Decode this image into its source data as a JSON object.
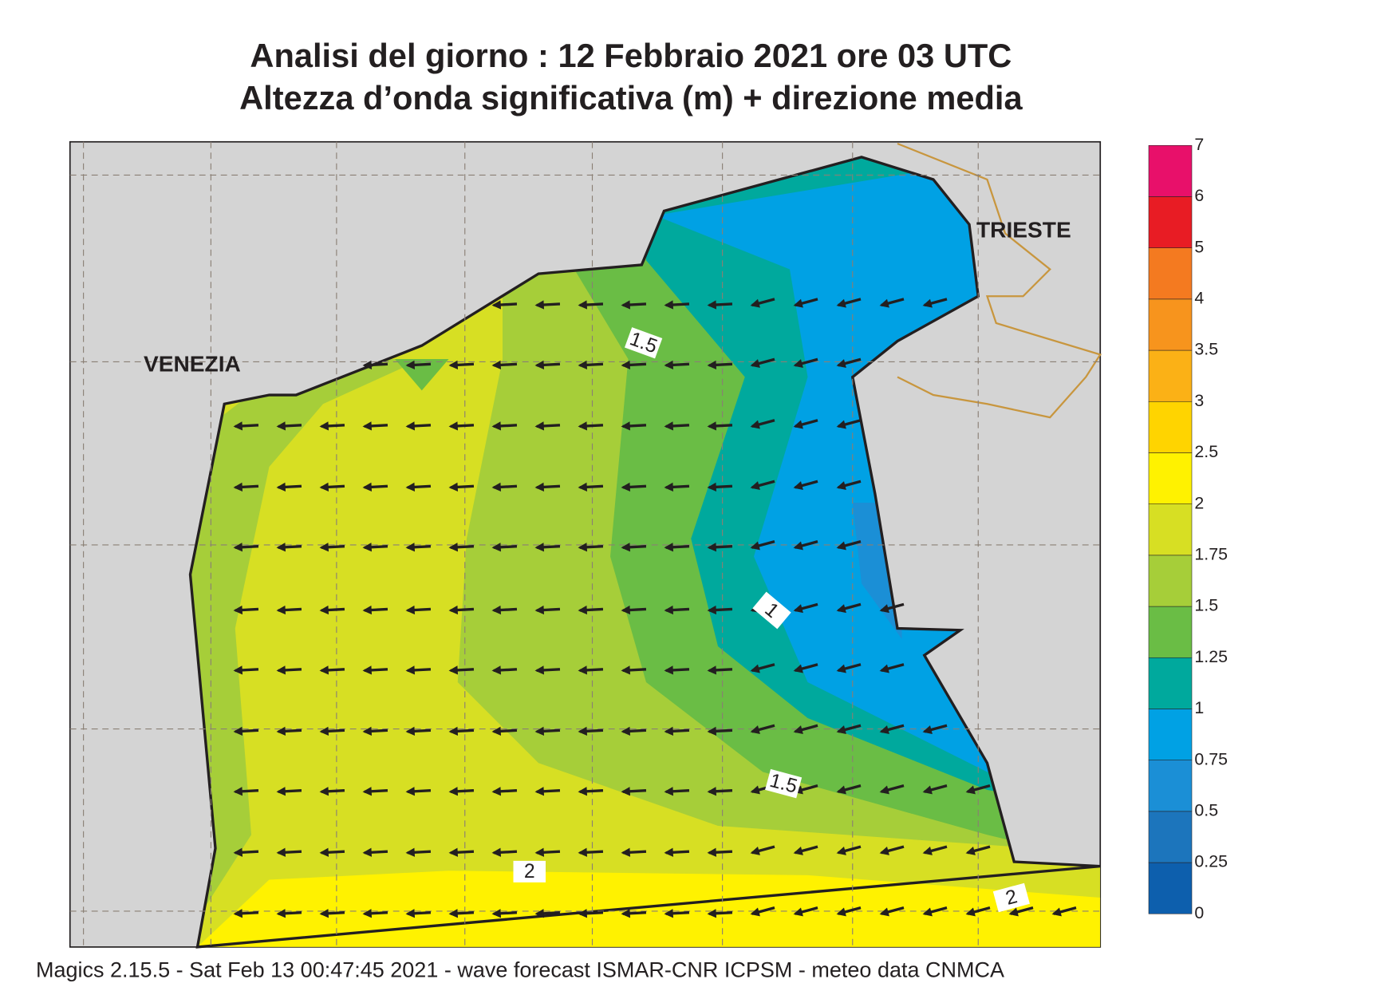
{
  "title": [
    "Analisi del giorno :  12  Febbraio 2021   ore 03 UTC",
    "Altezza d’onda significativa (m) + direzione media"
  ],
  "places": [
    {
      "name": "VENEZIA"
    },
    {
      "name": "TRIESTE"
    }
  ],
  "contour_labels": [
    1.5,
    1,
    1.5,
    2,
    2
  ],
  "colorbar": {
    "levels": [
      0,
      0.25,
      0.5,
      0.75,
      1,
      1.25,
      1.5,
      1.75,
      2,
      2.5,
      3,
      3.5,
      4,
      5,
      6,
      7
    ],
    "colors": [
      "#0d5fad",
      "#1c75bc",
      "#1b8fd6",
      "#00a1e4",
      "#00a99d",
      "#6abd45",
      "#a6ce39",
      "#d7df23",
      "#fff200",
      "#ffd400",
      "#fbb116",
      "#f7941d",
      "#f47a20",
      "#e81c24",
      "#e8106a"
    ]
  },
  "footer": "Magics 2.15.5 - Sat Feb 13 00:47:45 2021 - wave forecast  ISMAR-CNR  ICPSM - meteo data   CNMCA"
}
